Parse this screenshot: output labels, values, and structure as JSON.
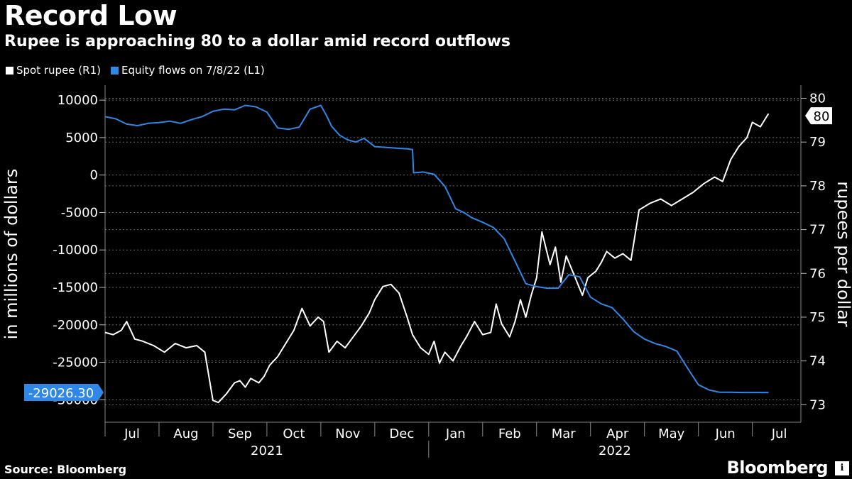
{
  "title": "Record Low",
  "subtitle": "Rupee is approaching 80 to a dollar amid record outflows",
  "source": "Source: Bloomberg",
  "brand": "Bloomberg",
  "brand_badge": "ℹ",
  "legend": [
    {
      "label": "Spot rupee (R1)",
      "color": "#ffffff"
    },
    {
      "label": "Equity flows on 7/8/22 (L1)",
      "color": "#2f87e8"
    }
  ],
  "chart_data": {
    "type": "line",
    "title": "Record Low",
    "subtitle": "Rupee is approaching 80 to a dollar amid record outflows",
    "left_axis": {
      "label": "in millions of dollars",
      "ticks": [
        "10000",
        "5000",
        "0",
        "-5000",
        "-10000",
        "-15000",
        "-20000",
        "-25000",
        "-30000"
      ],
      "ylim": [
        -33000,
        12000
      ]
    },
    "right_axis": {
      "label": "rupees per dollar",
      "ticks": [
        "80",
        "79",
        "78",
        "77",
        "76",
        "75",
        "74",
        "73"
      ],
      "ylim": [
        72.6,
        80.3
      ]
    },
    "x_axis": {
      "months": [
        "Jul",
        "Aug",
        "Sep",
        "Oct",
        "Nov",
        "Dec",
        "Jan",
        "Feb",
        "Mar",
        "Apr",
        "May",
        "Jun",
        "Jul"
      ],
      "years": [
        "2021",
        "2022"
      ],
      "xlim": [
        0,
        12.9
      ]
    },
    "last_value_labels": {
      "spot_rupee": "80",
      "equity_flows": "-29026.30"
    },
    "series": [
      {
        "name": "Spot rupee (R1)",
        "axis": "right",
        "color": "#ffffff",
        "x": [
          0,
          0.15,
          0.3,
          0.4,
          0.55,
          0.7,
          0.9,
          1.1,
          1.3,
          1.5,
          1.7,
          1.85,
          2.0,
          2.1,
          2.25,
          2.4,
          2.5,
          2.6,
          2.7,
          2.85,
          2.95,
          3.05,
          3.2,
          3.35,
          3.5,
          3.65,
          3.8,
          3.95,
          4.05,
          4.15,
          4.3,
          4.45,
          4.6,
          4.75,
          4.9,
          5.0,
          5.15,
          5.3,
          5.45,
          5.6,
          5.7,
          5.85,
          6.0,
          6.1,
          6.2,
          6.3,
          6.45,
          6.6,
          6.7,
          6.85,
          7.0,
          7.15,
          7.25,
          7.35,
          7.5,
          7.6,
          7.7,
          7.8,
          7.9,
          8.0,
          8.1,
          8.25,
          8.35,
          8.45,
          8.55,
          8.7,
          8.85,
          8.95,
          9.1,
          9.2,
          9.3,
          9.45,
          9.6,
          9.75,
          9.9,
          10.1,
          10.3,
          10.5,
          10.7,
          10.9,
          11.1,
          11.3,
          11.45,
          11.6,
          11.75,
          11.9,
          12.0,
          12.15,
          12.3
        ],
        "y": [
          74.65,
          74.6,
          74.7,
          74.9,
          74.5,
          74.45,
          74.35,
          74.2,
          74.4,
          74.3,
          74.35,
          74.2,
          73.1,
          73.05,
          73.25,
          73.5,
          73.55,
          73.4,
          73.6,
          73.5,
          73.65,
          73.9,
          74.1,
          74.4,
          74.7,
          75.2,
          74.8,
          75.0,
          74.9,
          74.2,
          74.45,
          74.3,
          74.55,
          74.8,
          75.1,
          75.4,
          75.7,
          75.75,
          75.55,
          75.0,
          74.6,
          74.3,
          74.15,
          74.45,
          73.95,
          74.2,
          74.0,
          74.35,
          74.55,
          74.9,
          74.6,
          74.65,
          75.3,
          74.85,
          74.55,
          74.9,
          75.4,
          75.0,
          75.5,
          75.9,
          76.95,
          76.2,
          76.6,
          75.8,
          76.4,
          75.95,
          75.5,
          75.9,
          76.05,
          76.25,
          76.5,
          76.35,
          76.45,
          76.3,
          77.45,
          77.6,
          77.7,
          77.55,
          77.7,
          77.85,
          78.05,
          78.2,
          78.1,
          78.6,
          78.9,
          79.1,
          79.45,
          79.35,
          79.65
        ]
      },
      {
        "name": "Equity flows on 7/8/22 (L1)",
        "axis": "left",
        "color": "#2f87e8",
        "x": [
          0,
          0.2,
          0.4,
          0.6,
          0.8,
          1.0,
          1.2,
          1.4,
          1.6,
          1.8,
          2.0,
          2.2,
          2.4,
          2.6,
          2.8,
          3.0,
          3.2,
          3.4,
          3.6,
          3.8,
          4.0,
          4.1,
          4.2,
          4.35,
          4.5,
          4.65,
          4.8,
          5.0,
          5.2,
          5.4,
          5.6,
          5.7,
          5.72,
          5.9,
          6.1,
          6.3,
          6.5,
          6.65,
          6.8,
          7.0,
          7.2,
          7.4,
          7.6,
          7.8,
          8.0,
          8.2,
          8.4,
          8.6,
          8.8,
          9.0,
          9.2,
          9.4,
          9.6,
          9.8,
          10.0,
          10.2,
          10.4,
          10.6,
          10.8,
          11.0,
          11.2,
          11.4,
          11.6,
          11.8,
          12.0,
          12.15,
          12.3
        ],
        "y": [
          7800,
          7500,
          6800,
          6600,
          6900,
          7000,
          7200,
          6900,
          7400,
          7800,
          8500,
          8800,
          8700,
          9300,
          9100,
          8400,
          6300,
          6100,
          6400,
          8800,
          9300,
          8000,
          6500,
          5300,
          4700,
          4400,
          4900,
          3800,
          3700,
          3600,
          3500,
          3400,
          300,
          400,
          100,
          -1500,
          -4500,
          -5000,
          -5700,
          -6300,
          -7000,
          -8500,
          -11500,
          -14500,
          -14900,
          -15100,
          -15100,
          -13300,
          -13600,
          -16300,
          -17200,
          -17700,
          -19200,
          -20900,
          -21900,
          -22500,
          -22900,
          -23500,
          -25800,
          -28000,
          -28700,
          -29000,
          -29000,
          -29030,
          -29026.3,
          -29026.3,
          -29026.3
        ]
      }
    ]
  }
}
